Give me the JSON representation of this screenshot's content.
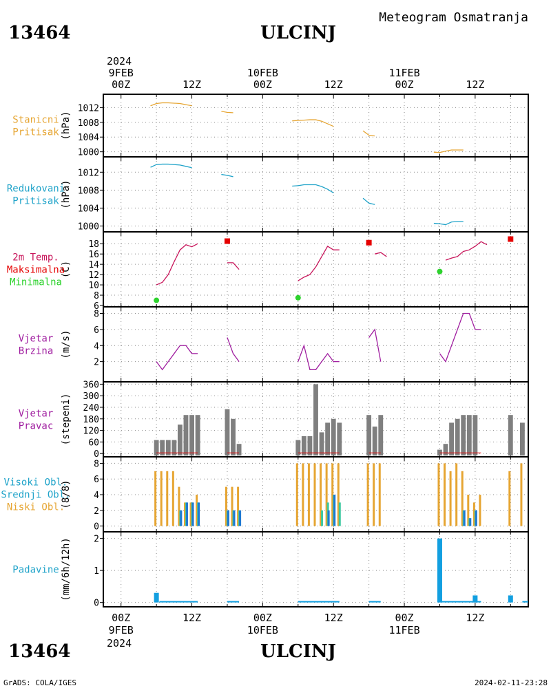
{
  "header": {
    "station_id": "13464",
    "station_name": "ULCINJ",
    "subtitle": "Meteogram Osmatranja",
    "year": "2024"
  },
  "footer": {
    "station_id": "13464",
    "station_name": "ULCINJ",
    "left_note": "GrADS: COLA/IGES",
    "timestamp": "2024-02-11-23:28",
    "year": "2024"
  },
  "time_axis": {
    "hour_labels": [
      "00Z",
      "12Z",
      "00Z",
      "12Z",
      "00Z",
      "12Z"
    ],
    "hour_values": [
      0,
      12,
      24,
      36,
      48,
      60
    ],
    "date_labels": [
      "9FEB",
      "10FEB",
      "11FEB"
    ],
    "date_hours": [
      0,
      24,
      48
    ],
    "range_hours": [
      -3,
      69
    ]
  },
  "colors": {
    "stanicni": "#e6a532",
    "redukovani": "#1fa3c9",
    "temp": "#c8145a",
    "max": "#e60000",
    "min": "#2dd22d",
    "wind": "#a01ea0",
    "bars": "#7f7f7f",
    "cloud_niski": "#e6a532",
    "cloud_srednji": "#3cc8a0",
    "cloud_visoki": "#1e78d2",
    "precip": "#129fe0",
    "grid": "#8c8c8c"
  },
  "panels": [
    {
      "id": "stanicni",
      "labels": [
        "Stanicni",
        "Pritisak"
      ],
      "label_color": "#e6a532",
      "unit": "(hPa)"
    },
    {
      "id": "redukovani",
      "labels": [
        "Redukovani",
        "Pritisak"
      ],
      "label_color": "#1fa3c9",
      "unit": "(hPa)"
    },
    {
      "id": "temp",
      "labels": [
        "2m Temp.",
        "Maksimalna",
        "Minimalna"
      ],
      "label_colors": [
        "#c8145a",
        "#e60000",
        "#2dd22d"
      ],
      "unit": "(C)"
    },
    {
      "id": "wind_speed",
      "labels": [
        "Vjetar",
        "Brzina"
      ],
      "label_color": "#a01ea0",
      "unit": "(m/s)"
    },
    {
      "id": "wind_dir",
      "labels": [
        "Vjetar",
        "Pravac"
      ],
      "label_color": "#a01ea0",
      "unit": "(stepeni)"
    },
    {
      "id": "clouds",
      "labels": [
        "Visoki Obl.",
        "Srednji Obl.",
        "Niski Obl."
      ],
      "label_colors": [
        "#1fa3c9",
        "#1fa3c9",
        "#e6a532"
      ],
      "unit": "(8/8)"
    },
    {
      "id": "precip",
      "labels": [
        "Padavine"
      ],
      "label_color": "#1fa3c9",
      "unit": "(mm/6h/12h)"
    }
  ],
  "chart_data": [
    {
      "type": "line",
      "title": "Stanicni Pritisak",
      "ylabel": "(hPa)",
      "ylim": [
        999,
        1014.5
      ],
      "yticks": [
        1000,
        1004,
        1008,
        1012
      ],
      "series": [
        {
          "segments": [
            [
              [
                5,
                1012.5
              ],
              [
                6,
                1013.1
              ],
              [
                7,
                1013.3
              ],
              [
                8,
                1013.3
              ],
              [
                9,
                1013.2
              ],
              [
                10,
                1013.1
              ],
              [
                11,
                1012.8
              ],
              [
                12,
                1012.5
              ]
            ],
            [
              [
                17,
                1011
              ],
              [
                18,
                1010.7
              ],
              [
                19,
                1010.6
              ]
            ],
            [
              [
                29,
                1008.4
              ],
              [
                30,
                1008.5
              ],
              [
                31,
                1008.6
              ],
              [
                32,
                1008.7
              ],
              [
                33,
                1008.7
              ],
              [
                34,
                1008.3
              ],
              [
                35,
                1007.6
              ],
              [
                36,
                1006.9
              ]
            ],
            [
              [
                41,
                1005.7
              ],
              [
                42,
                1004.5
              ],
              [
                43,
                1004.3
              ]
            ],
            [
              [
                53,
                999.9
              ],
              [
                54,
                999.8
              ],
              [
                55,
                1000.2
              ],
              [
                56,
                1000.5
              ],
              [
                57,
                1000.5
              ],
              [
                58,
                1000.5
              ]
            ]
          ]
        }
      ]
    },
    {
      "type": "line",
      "title": "Redukovani Pritisak",
      "ylabel": "(hPa)",
      "ylim": [
        999,
        1014.5
      ],
      "yticks": [
        1000,
        1004,
        1008,
        1012
      ],
      "series": [
        {
          "segments": [
            [
              [
                5,
                1013.1
              ],
              [
                6,
                1013.7
              ],
              [
                7,
                1013.8
              ],
              [
                8,
                1013.8
              ],
              [
                9,
                1013.7
              ],
              [
                10,
                1013.6
              ],
              [
                11,
                1013.3
              ],
              [
                12,
                1013.0
              ]
            ],
            [
              [
                17,
                1011.5
              ],
              [
                18,
                1011.3
              ],
              [
                19,
                1011.0
              ]
            ],
            [
              [
                29,
                1008.9
              ],
              [
                30,
                1009.0
              ],
              [
                31,
                1009.2
              ],
              [
                32,
                1009.2
              ],
              [
                33,
                1009.2
              ],
              [
                34,
                1008.8
              ],
              [
                35,
                1008.2
              ],
              [
                36,
                1007.4
              ]
            ],
            [
              [
                41,
                1006.2
              ],
              [
                42,
                1005.1
              ],
              [
                43,
                1004.8
              ]
            ],
            [
              [
                53,
                1000.6
              ],
              [
                54,
                1000.5
              ],
              [
                55,
                1000.3
              ],
              [
                56,
                1000.9
              ],
              [
                57,
                1001.0
              ],
              [
                58,
                1001.0
              ]
            ]
          ]
        }
      ]
    },
    {
      "type": "line",
      "title": "2m Temp.",
      "ylabel": "(C)",
      "ylim": [
        6,
        19.5
      ],
      "yticks": [
        6,
        8,
        10,
        12,
        14,
        16,
        18
      ],
      "series": [
        {
          "name": "2m Temp.",
          "segments": [
            [
              [
                6,
                10
              ],
              [
                7,
                10.5
              ],
              [
                8,
                12
              ],
              [
                9,
                14.5
              ],
              [
                10,
                16.8
              ],
              [
                11,
                17.8
              ],
              [
                12,
                17.4
              ],
              [
                13,
                18
              ]
            ],
            [
              [
                18,
                14.3
              ],
              [
                19,
                14.3
              ],
              [
                20,
                13
              ]
            ],
            [
              [
                30,
                10.8
              ],
              [
                31,
                11.5
              ],
              [
                32,
                12
              ],
              [
                33,
                13.5
              ],
              [
                34,
                15.5
              ],
              [
                35,
                17.5
              ],
              [
                36,
                16.8
              ],
              [
                37,
                16.8
              ]
            ],
            [
              [
                43,
                16
              ],
              [
                44,
                16.3
              ],
              [
                45,
                15.5
              ]
            ],
            [
              [
                55,
                14.8
              ],
              [
                56,
                15.2
              ],
              [
                57,
                15.5
              ],
              [
                58,
                16.5
              ],
              [
                59,
                16.8
              ],
              [
                60,
                17.5
              ],
              [
                61,
                18.4
              ],
              [
                62,
                17.8
              ]
            ]
          ]
        },
        {
          "name": "Maksimalna",
          "points": [
            [
              18,
              18.5
            ],
            [
              42,
              18.2
            ],
            [
              66,
              18.9
            ]
          ]
        },
        {
          "name": "Minimalna",
          "points": [
            [
              6,
              7
            ],
            [
              30,
              7.5
            ],
            [
              54,
              12.6
            ]
          ]
        }
      ]
    },
    {
      "type": "line",
      "title": "Vjetar Brzina",
      "ylabel": "(m/s)",
      "ylim": [
        0,
        8.3
      ],
      "yticks": [
        2,
        4,
        6,
        8
      ],
      "series": [
        {
          "segments": [
            [
              [
                6,
                2
              ],
              [
                7,
                1
              ],
              [
                8,
                2
              ],
              [
                9,
                3
              ],
              [
                10,
                4
              ],
              [
                11,
                4
              ],
              [
                12,
                3
              ],
              [
                13,
                3
              ]
            ],
            [
              [
                18,
                5
              ],
              [
                19,
                3
              ],
              [
                20,
                2
              ]
            ],
            [
              [
                30,
                2
              ],
              [
                31,
                4
              ],
              [
                32,
                1
              ],
              [
                33,
                1
              ],
              [
                34,
                2
              ],
              [
                35,
                3
              ],
              [
                36,
                2
              ],
              [
                37,
                2
              ]
            ],
            [
              [
                42,
                5
              ],
              [
                43,
                6
              ],
              [
                44,
                2
              ]
            ],
            [
              [
                54,
                3
              ],
              [
                55,
                2
              ],
              [
                56,
                4
              ],
              [
                57,
                6
              ],
              [
                58,
                8
              ],
              [
                59,
                8
              ],
              [
                60,
                6
              ],
              [
                61,
                6
              ]
            ]
          ]
        }
      ]
    },
    {
      "type": "bar",
      "title": "Vjetar Pravac",
      "ylabel": "(stepeni)",
      "ylim": [
        -10,
        365
      ],
      "yticks": [
        0,
        60,
        120,
        180,
        240,
        300,
        360
      ],
      "bar_width_hours": 0.8,
      "x": [
        6,
        7,
        8,
        9,
        10,
        11,
        12,
        13,
        18,
        19,
        20,
        30,
        31,
        32,
        33,
        34,
        35,
        36,
        37,
        42,
        43,
        44,
        54,
        55,
        56,
        57,
        58,
        59,
        60,
        66,
        68
      ],
      "values": [
        70,
        70,
        70,
        70,
        150,
        200,
        200,
        200,
        230,
        180,
        50,
        70,
        90,
        90,
        360,
        110,
        160,
        180,
        160,
        200,
        140,
        200,
        20,
        50,
        160,
        180,
        200,
        200,
        200,
        200,
        160
      ],
      "ground_lines": [
        [
          6,
          13
        ],
        [
          18,
          20
        ],
        [
          30,
          37
        ],
        [
          42,
          44
        ],
        [
          54,
          61
        ]
      ]
    },
    {
      "type": "bar",
      "title": "Oblacnost",
      "ylabel": "(8/8)",
      "ylim": [
        -0.3,
        8.3
      ],
      "yticks": [
        0,
        2,
        4,
        6,
        8
      ],
      "series": [
        {
          "name": "Niski Obl.",
          "x": [
            6,
            7,
            8,
            9,
            10,
            11,
            12,
            13,
            18,
            19,
            20,
            30,
            31,
            32,
            33,
            34,
            35,
            36,
            37,
            42,
            43,
            44,
            54,
            55,
            56,
            57,
            58,
            59,
            60,
            61,
            66,
            68
          ],
          "values": [
            7,
            7,
            7,
            7,
            5,
            3,
            3,
            4,
            5,
            5,
            5,
            8,
            8,
            8,
            8,
            8,
            8,
            8,
            8,
            8,
            8,
            8,
            8,
            8,
            7,
            8,
            7,
            4,
            3,
            4,
            7,
            8
          ]
        },
        {
          "name": "Srednji Obl.",
          "x": [
            10,
            11,
            12,
            13,
            18,
            19,
            20,
            34,
            35,
            36,
            37,
            58,
            59,
            60
          ],
          "values": [
            2,
            3,
            3,
            3,
            2,
            2,
            2,
            2,
            3,
            4,
            3,
            2,
            1,
            2
          ]
        },
        {
          "name": "Visoki Obl.",
          "x": [
            10,
            11,
            12,
            13,
            18,
            19,
            20,
            35,
            36,
            58,
            59,
            60
          ],
          "values": [
            2,
            3,
            3,
            3,
            2,
            2,
            2,
            2,
            4,
            2,
            1,
            2
          ]
        }
      ]
    },
    {
      "type": "bar",
      "title": "Padavine",
      "ylabel": "(mm/6h/12h)",
      "ylim": [
        -0.05,
        2.1
      ],
      "yticks": [
        0,
        1,
        2
      ],
      "bars": [
        [
          6,
          0.3
        ],
        [
          54,
          2.0
        ],
        [
          60,
          0.22
        ],
        [
          66,
          0.22
        ]
      ],
      "trace_segments": [
        [
          6.5,
          13
        ],
        [
          18,
          20
        ],
        [
          30,
          37
        ],
        [
          42,
          44
        ],
        [
          54,
          61
        ],
        [
          68,
          69
        ]
      ]
    }
  ]
}
